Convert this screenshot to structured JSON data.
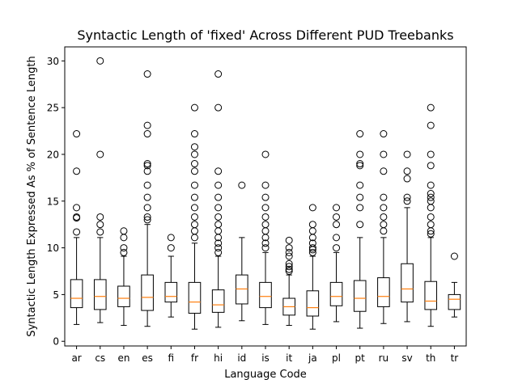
{
  "chart_data": {
    "type": "boxplot",
    "title": "Syntactic Length of 'fixed' Across Different PUD Treebanks",
    "xlabel": "Language Code",
    "ylabel": "Syntactic Length Expressed As % of Sentence Length",
    "ylim": [
      -0.5,
      31.5
    ],
    "yticks": [
      0,
      5,
      10,
      15,
      20,
      25,
      30
    ],
    "grid": false,
    "categories": [
      "ar",
      "cs",
      "en",
      "es",
      "fi",
      "fr",
      "hi",
      "id",
      "is",
      "it",
      "ja",
      "pl",
      "pt",
      "ru",
      "sv",
      "th",
      "tr"
    ],
    "boxes": [
      {
        "category": "ar",
        "whisker_low": 1.8,
        "q1": 3.6,
        "median": 4.6,
        "q3": 6.6,
        "whisker_high": 11.1,
        "outliers": [
          11.7,
          13.2,
          13.3,
          14.3,
          18.2,
          22.2
        ]
      },
      {
        "category": "cs",
        "whisker_low": 2.0,
        "q1": 3.4,
        "median": 4.8,
        "q3": 6.6,
        "whisker_high": 11.1,
        "outliers": [
          11.7,
          12.5,
          13.3,
          20.0,
          30.0
        ]
      },
      {
        "category": "en",
        "whisker_low": 1.7,
        "q1": 3.7,
        "median": 4.6,
        "q3": 5.9,
        "whisker_high": 9.1,
        "outliers": [
          9.5,
          10.0,
          11.1,
          11.8
        ]
      },
      {
        "category": "es",
        "whisker_low": 1.6,
        "q1": 3.3,
        "median": 4.7,
        "q3": 7.1,
        "whisker_high": 12.5,
        "outliers": [
          13.0,
          13.3,
          14.3,
          15.4,
          16.7,
          18.2,
          18.8,
          19.0,
          22.2,
          23.1,
          28.6
        ]
      },
      {
        "category": "fi",
        "whisker_low": 2.6,
        "q1": 4.2,
        "median": 4.8,
        "q3": 6.3,
        "whisker_high": 9.1,
        "outliers": [
          10.0,
          11.1
        ]
      },
      {
        "category": "fr",
        "whisker_low": 1.3,
        "q1": 3.0,
        "median": 4.2,
        "q3": 6.3,
        "whisker_high": 10.5,
        "outliers": [
          11.1,
          11.8,
          12.5,
          13.3,
          14.3,
          15.4,
          16.7,
          18.2,
          19.0,
          20.0,
          20.8,
          22.2,
          25.0
        ]
      },
      {
        "category": "hi",
        "whisker_low": 1.5,
        "q1": 3.1,
        "median": 3.9,
        "q3": 5.5,
        "whisker_high": 9.1,
        "outliers": [
          9.5,
          10.0,
          10.5,
          11.1,
          11.8,
          12.5,
          13.3,
          14.3,
          15.4,
          16.7,
          18.2,
          25.0,
          28.6
        ]
      },
      {
        "category": "id",
        "whisker_low": 2.2,
        "q1": 4.0,
        "median": 5.6,
        "q3": 7.1,
        "whisker_high": 11.1,
        "outliers": [
          16.7
        ]
      },
      {
        "category": "is",
        "whisker_low": 1.8,
        "q1": 3.6,
        "median": 4.8,
        "q3": 6.3,
        "whisker_high": 9.5,
        "outliers": [
          10.0,
          10.5,
          11.1,
          11.8,
          12.5,
          13.3,
          14.3,
          15.4,
          16.7,
          20.0
        ]
      },
      {
        "category": "it",
        "whisker_low": 1.7,
        "q1": 2.8,
        "median": 3.7,
        "q3": 4.6,
        "whisker_high": 7.1,
        "outliers": [
          7.5,
          7.7,
          8.0,
          8.3,
          9.1,
          9.5,
          10.0,
          10.8
        ]
      },
      {
        "category": "ja",
        "whisker_low": 1.3,
        "q1": 2.7,
        "median": 3.6,
        "q3": 5.4,
        "whisker_high": 9.1,
        "outliers": [
          9.5,
          9.8,
          10.0,
          10.5,
          11.1,
          11.8,
          12.5,
          14.3
        ]
      },
      {
        "category": "pl",
        "whisker_low": 2.1,
        "q1": 3.8,
        "median": 4.8,
        "q3": 6.3,
        "whisker_high": 9.5,
        "outliers": [
          10.0,
          11.1,
          12.5,
          13.3,
          14.3
        ]
      },
      {
        "category": "pt",
        "whisker_low": 1.4,
        "q1": 3.2,
        "median": 4.6,
        "q3": 6.5,
        "whisker_high": 11.1,
        "outliers": [
          12.5,
          14.3,
          15.4,
          16.7,
          18.8,
          19.0,
          20.0,
          22.2
        ]
      },
      {
        "category": "ru",
        "whisker_low": 1.9,
        "q1": 3.7,
        "median": 4.8,
        "q3": 6.8,
        "whisker_high": 11.1,
        "outliers": [
          11.8,
          12.5,
          13.3,
          14.3,
          15.4,
          18.2,
          20.0,
          22.2
        ]
      },
      {
        "category": "sv",
        "whisker_low": 2.1,
        "q1": 4.2,
        "median": 5.6,
        "q3": 8.3,
        "whisker_high": 14.3,
        "outliers": [
          15.0,
          15.4,
          17.4,
          18.2,
          20.0
        ]
      },
      {
        "category": "th",
        "whisker_low": 1.6,
        "q1": 3.4,
        "median": 4.3,
        "q3": 6.4,
        "whisker_high": 11.1,
        "outliers": [
          11.5,
          11.8,
          12.5,
          13.3,
          14.3,
          15.0,
          15.4,
          15.8,
          16.7,
          18.8,
          20.0,
          23.1,
          25.0
        ]
      },
      {
        "category": "tr",
        "whisker_low": 2.6,
        "q1": 3.4,
        "median": 4.5,
        "q3": 5.0,
        "whisker_high": 6.3,
        "outliers": [
          9.1
        ]
      }
    ],
    "colors": {
      "box": "#000000",
      "median": "#ff7f0e",
      "outlier": "#000000"
    }
  }
}
